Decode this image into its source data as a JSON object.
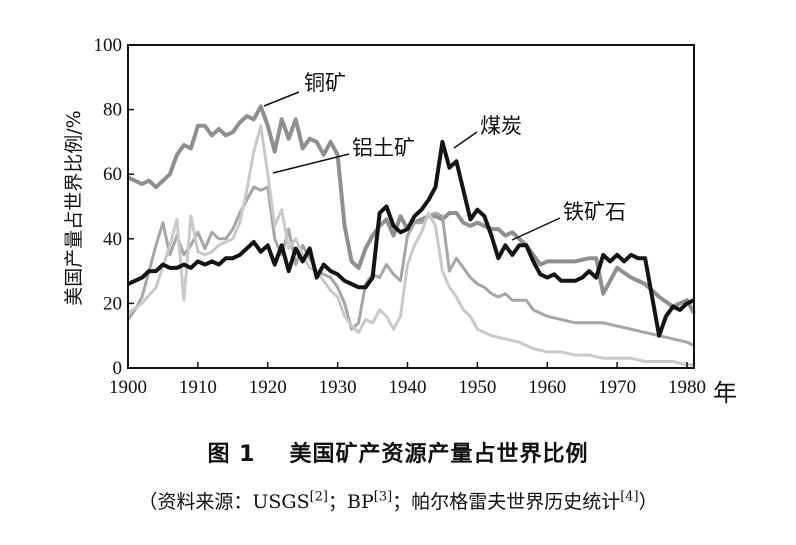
{
  "chart_data": {
    "type": "line",
    "ylabel": "美国产量占世界比例/%",
    "xunit": "年",
    "xlim": [
      1900,
      1981
    ],
    "ylim": [
      0,
      100
    ],
    "xticks": [
      "1900",
      "1910",
      "1920",
      "1930",
      "1940",
      "1950",
      "1960",
      "1970",
      "1980"
    ],
    "yticks": [
      "0",
      "20",
      "40",
      "60",
      "80",
      "100"
    ],
    "grid": false,
    "series": [
      {
        "name": "铜矿",
        "color": "#8f8f8f",
        "width": 4,
        "x": [
          1900,
          1902,
          1903,
          1904,
          1905,
          1906,
          1907,
          1908,
          1909,
          1910,
          1911,
          1912,
          1913,
          1914,
          1915,
          1916,
          1917,
          1918,
          1919,
          1920,
          1921,
          1922,
          1923,
          1924,
          1925,
          1926,
          1927,
          1928,
          1929,
          1930,
          1931,
          1932,
          1933,
          1934,
          1935,
          1936,
          1937,
          1938,
          1939,
          1940,
          1941,
          1942,
          1943,
          1944,
          1945,
          1946,
          1947,
          1948,
          1949,
          1950,
          1951,
          1952,
          1953,
          1954,
          1955,
          1956,
          1957,
          1958,
          1959,
          1960,
          1962,
          1964,
          1966,
          1967,
          1968,
          1970,
          1972,
          1974,
          1976,
          1978,
          1980,
          1981
        ],
        "values": [
          59,
          57,
          58,
          56,
          58,
          60,
          66,
          69,
          68,
          75,
          75,
          72,
          74,
          72,
          73,
          76,
          78,
          77,
          81,
          75,
          67,
          77,
          71,
          77,
          68,
          71,
          70,
          66,
          70,
          66,
          44,
          33,
          31,
          37,
          41,
          44,
          46,
          41,
          47,
          43,
          45,
          46,
          47,
          47,
          46,
          48,
          48,
          45,
          44,
          45,
          44,
          43,
          43,
          41,
          42,
          40,
          38,
          35,
          32,
          33,
          33,
          33,
          34,
          34,
          23,
          31,
          28,
          26,
          22,
          19,
          21,
          17
        ]
      },
      {
        "name": "铝土矿",
        "color": "#a6a6a6",
        "width": 3,
        "x": [
          1900,
          1901,
          1902,
          1903,
          1904,
          1905,
          1906,
          1907,
          1908,
          1909,
          1910,
          1911,
          1912,
          1913,
          1914,
          1915,
          1916,
          1917,
          1918,
          1919,
          1920,
          1921,
          1922,
          1923,
          1924,
          1925,
          1926,
          1927,
          1928,
          1929,
          1930,
          1931,
          1932,
          1933,
          1934,
          1935,
          1936,
          1937,
          1938,
          1939,
          1940,
          1941,
          1942,
          1943,
          1944,
          1945,
          1946,
          1947,
          1948,
          1949,
          1950,
          1951,
          1952,
          1953,
          1954,
          1955,
          1956,
          1957,
          1958,
          1960,
          1962,
          1964,
          1966,
          1968,
          1970,
          1972,
          1974,
          1976,
          1978,
          1980,
          1981
        ],
        "values": [
          15,
          18,
          22,
          30,
          38,
          45,
          35,
          41,
          35,
          38,
          42,
          37,
          42,
          40,
          40,
          43,
          48,
          52,
          56,
          55,
          56,
          40,
          35,
          43,
          32,
          38,
          34,
          30,
          29,
          28,
          25,
          20,
          12,
          14,
          26,
          29,
          28,
          32,
          29,
          27,
          41,
          45,
          45,
          47,
          48,
          47,
          30,
          34,
          31,
          28,
          26,
          25,
          23,
          22,
          23,
          21,
          21,
          21,
          18,
          16,
          15,
          14,
          14,
          14,
          13,
          12,
          11,
          10,
          9,
          8,
          7
        ]
      },
      {
        "name": "",
        "color": "#c9c9c9",
        "width": 3,
        "x": [
          1900,
          1902,
          1904,
          1906,
          1907,
          1908,
          1909,
          1910,
          1911,
          1912,
          1913,
          1914,
          1915,
          1916,
          1917,
          1918,
          1919,
          1920,
          1921,
          1922,
          1923,
          1924,
          1925,
          1926,
          1927,
          1928,
          1929,
          1930,
          1931,
          1932,
          1933,
          1934,
          1935,
          1936,
          1937,
          1938,
          1939,
          1940,
          1941,
          1942,
          1943,
          1944,
          1945,
          1946,
          1947,
          1948,
          1949,
          1950,
          1952,
          1954,
          1956,
          1958,
          1960,
          1962,
          1964,
          1966,
          1968,
          1970,
          1972,
          1974,
          1976,
          1978,
          1980,
          1981
        ],
        "values": [
          17,
          20,
          25,
          38,
          46,
          21,
          47,
          36,
          35,
          36,
          38,
          39,
          40,
          45,
          55,
          67,
          75,
          60,
          44,
          49,
          37,
          40,
          35,
          31,
          30,
          27,
          24,
          22,
          16,
          13,
          11,
          15,
          14,
          18,
          16,
          12,
          16,
          32,
          38,
          42,
          48,
          44,
          30,
          25,
          22,
          18,
          16,
          12,
          10,
          9,
          8,
          6,
          5,
          5,
          4,
          4,
          3,
          3,
          3,
          2,
          2,
          2,
          1,
          1
        ]
      },
      {
        "name": "煤炭",
        "color": "#141414",
        "width": 4,
        "x": [
          1900,
          1901,
          1902,
          1903,
          1904,
          1905,
          1906,
          1907,
          1908,
          1909,
          1910,
          1911,
          1912,
          1913,
          1914,
          1915,
          1916,
          1917,
          1918,
          1919,
          1920,
          1921,
          1922,
          1923,
          1924,
          1925,
          1926,
          1927,
          1928,
          1929,
          1930,
          1931,
          1932,
          1933,
          1934,
          1935,
          1936,
          1937,
          1938,
          1939,
          1940,
          1941,
          1942,
          1943,
          1944,
          1945,
          1946,
          1947,
          1948,
          1949,
          1950,
          1951,
          1952,
          1953,
          1954,
          1955,
          1956,
          1957,
          1958,
          1959,
          1960,
          1961,
          1962,
          1963,
          1964,
          1965,
          1966,
          1967,
          1968,
          1969,
          1970,
          1971,
          1972,
          1973,
          1974,
          1975,
          1976,
          1977,
          1978,
          1979,
          1980,
          1981
        ],
        "values": [
          26,
          27,
          28,
          30,
          30,
          32,
          31,
          31,
          32,
          31,
          33,
          32,
          33,
          32,
          34,
          34,
          35,
          37,
          39,
          36,
          38,
          32,
          38,
          30,
          37,
          33,
          37,
          28,
          32,
          30,
          29,
          27,
          26,
          25,
          25,
          28,
          48,
          50,
          44,
          42,
          43,
          47,
          49,
          52,
          56,
          70,
          62,
          64,
          55,
          46,
          49,
          47,
          41,
          34,
          38,
          35,
          38,
          38,
          33,
          29,
          28,
          29,
          27,
          27,
          27,
          28,
          30,
          28,
          35,
          33,
          35,
          33,
          35,
          34,
          34,
          22,
          10,
          16,
          19,
          18,
          20,
          21
        ]
      }
    ],
    "annotations": [
      {
        "text": "铜矿"
      },
      {
        "text": "铝土矿"
      },
      {
        "text": "煤炭"
      },
      {
        "text": "铁矿石"
      }
    ],
    "caption": {
      "number": "图 1",
      "title": "美国矿产资源产量占世界比例"
    },
    "source": {
      "prefix": "（资料来源：USGS",
      "ref1": "[2]",
      "mid1": "；BP",
      "ref2": "[3]",
      "mid2": "；帕尔格雷夫世界历史统计",
      "ref3": "[4]",
      "suffix": "）"
    }
  }
}
